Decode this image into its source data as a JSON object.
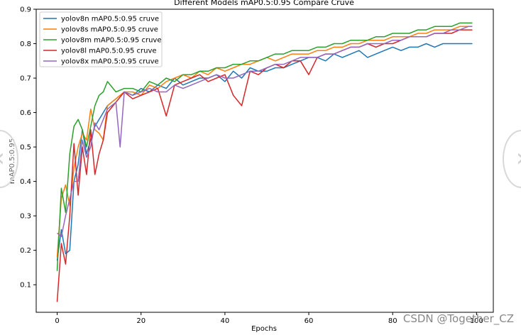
{
  "chart_data": {
    "type": "line",
    "title": "Different Models mAP0.5:0.95 Compare Cruve",
    "xlabel": "Epochs",
    "ylabel": "mAP0.5:0.95",
    "xlim": [
      -5,
      104
    ],
    "ylim": [
      0.02,
      0.9
    ],
    "xticks": [
      0,
      20,
      40,
      60,
      80,
      100
    ],
    "yticks": [
      0.1,
      0.2,
      0.3,
      0.4,
      0.5,
      0.6,
      0.7,
      0.8,
      0.9
    ],
    "legend_position": "top-left",
    "grid": false,
    "series": [
      {
        "name": "yolov8n mAP0.5:0.95 cruve",
        "color": "#1f77b4",
        "x": [
          0,
          1,
          2,
          3,
          4,
          5,
          6,
          7,
          8,
          9,
          10,
          11,
          12,
          14,
          16,
          18,
          20,
          22,
          24,
          26,
          28,
          30,
          32,
          34,
          36,
          38,
          40,
          42,
          44,
          46,
          48,
          50,
          52,
          54,
          56,
          58,
          60,
          62,
          64,
          66,
          68,
          70,
          72,
          74,
          76,
          78,
          80,
          82,
          84,
          86,
          88,
          90,
          92,
          94,
          96,
          98,
          99
        ],
        "y": [
          0.17,
          0.26,
          0.19,
          0.2,
          0.4,
          0.45,
          0.55,
          0.48,
          0.52,
          0.56,
          0.58,
          0.6,
          0.62,
          0.64,
          0.66,
          0.65,
          0.67,
          0.66,
          0.68,
          0.67,
          0.7,
          0.68,
          0.69,
          0.7,
          0.7,
          0.71,
          0.69,
          0.72,
          0.7,
          0.73,
          0.72,
          0.72,
          0.73,
          0.73,
          0.74,
          0.75,
          0.76,
          0.76,
          0.75,
          0.77,
          0.76,
          0.77,
          0.78,
          0.76,
          0.77,
          0.78,
          0.79,
          0.78,
          0.79,
          0.79,
          0.8,
          0.79,
          0.8,
          0.8,
          0.8,
          0.8,
          0.8
        ]
      },
      {
        "name": "yolov8s mAP0.5:0.95 cruve",
        "color": "#ff7f0e",
        "x": [
          0,
          1,
          2,
          3,
          4,
          5,
          6,
          7,
          8,
          9,
          10,
          11,
          12,
          14,
          16,
          18,
          20,
          22,
          24,
          26,
          28,
          30,
          32,
          34,
          36,
          38,
          40,
          42,
          44,
          46,
          48,
          50,
          52,
          54,
          56,
          58,
          60,
          62,
          64,
          66,
          68,
          70,
          72,
          74,
          76,
          78,
          80,
          82,
          84,
          86,
          88,
          90,
          92,
          94,
          96,
          98,
          99
        ],
        "y": [
          0.18,
          0.35,
          0.39,
          0.33,
          0.44,
          0.5,
          0.54,
          0.52,
          0.61,
          0.55,
          0.54,
          0.52,
          0.62,
          0.64,
          0.66,
          0.66,
          0.65,
          0.68,
          0.67,
          0.69,
          0.7,
          0.71,
          0.7,
          0.72,
          0.71,
          0.73,
          0.72,
          0.73,
          0.74,
          0.74,
          0.75,
          0.76,
          0.75,
          0.76,
          0.77,
          0.77,
          0.77,
          0.78,
          0.78,
          0.79,
          0.79,
          0.8,
          0.8,
          0.81,
          0.81,
          0.81,
          0.82,
          0.82,
          0.82,
          0.83,
          0.83,
          0.84,
          0.84,
          0.84,
          0.85,
          0.85,
          0.85
        ]
      },
      {
        "name": "yolov8m mAP0.5:0.95 cruve",
        "color": "#2ca02c",
        "x": [
          0,
          1,
          2,
          3,
          4,
          5,
          6,
          7,
          8,
          9,
          10,
          11,
          12,
          14,
          16,
          18,
          20,
          22,
          24,
          26,
          28,
          30,
          32,
          34,
          36,
          38,
          40,
          42,
          44,
          46,
          48,
          50,
          52,
          54,
          56,
          58,
          60,
          62,
          64,
          66,
          68,
          70,
          72,
          74,
          76,
          78,
          80,
          82,
          84,
          86,
          88,
          90,
          92,
          94,
          96,
          98,
          99
        ],
        "y": [
          0.14,
          0.38,
          0.31,
          0.48,
          0.56,
          0.58,
          0.55,
          0.5,
          0.56,
          0.62,
          0.65,
          0.66,
          0.69,
          0.66,
          0.67,
          0.67,
          0.66,
          0.69,
          0.68,
          0.7,
          0.69,
          0.71,
          0.71,
          0.72,
          0.72,
          0.73,
          0.73,
          0.74,
          0.74,
          0.75,
          0.75,
          0.76,
          0.77,
          0.77,
          0.78,
          0.78,
          0.78,
          0.79,
          0.79,
          0.8,
          0.8,
          0.81,
          0.81,
          0.81,
          0.82,
          0.82,
          0.83,
          0.83,
          0.83,
          0.84,
          0.84,
          0.85,
          0.85,
          0.85,
          0.86,
          0.86,
          0.86
        ]
      },
      {
        "name": "yolov8l mAP0.5:0.95 cruve",
        "color": "#d62728",
        "x": [
          0,
          1,
          2,
          3,
          4,
          5,
          6,
          7,
          8,
          9,
          10,
          11,
          12,
          14,
          16,
          18,
          20,
          22,
          24,
          26,
          28,
          30,
          32,
          34,
          36,
          38,
          40,
          42,
          44,
          46,
          48,
          50,
          52,
          54,
          56,
          58,
          60,
          62,
          64,
          66,
          68,
          70,
          72,
          74,
          76,
          78,
          80,
          82,
          84,
          86,
          88,
          90,
          92,
          94,
          96,
          98,
          99
        ],
        "y": [
          0.05,
          0.22,
          0.16,
          0.3,
          0.51,
          0.36,
          0.5,
          0.42,
          0.55,
          0.42,
          0.48,
          0.52,
          0.6,
          0.63,
          0.66,
          0.64,
          0.65,
          0.66,
          0.67,
          0.59,
          0.68,
          0.69,
          0.7,
          0.71,
          0.69,
          0.7,
          0.71,
          0.65,
          0.62,
          0.72,
          0.71,
          0.73,
          0.74,
          0.73,
          0.75,
          0.75,
          0.71,
          0.76,
          0.77,
          0.77,
          0.78,
          0.79,
          0.79,
          0.8,
          0.79,
          0.8,
          0.8,
          0.81,
          0.82,
          0.82,
          0.82,
          0.83,
          0.83,
          0.83,
          0.84,
          0.84,
          0.84
        ]
      },
      {
        "name": "yolov8x mAP0.5:0.95 cruve",
        "color": "#9467bd",
        "x": [
          0,
          1,
          2,
          3,
          4,
          5,
          6,
          7,
          8,
          9,
          10,
          11,
          12,
          14,
          15,
          16,
          18,
          20,
          22,
          24,
          26,
          28,
          30,
          32,
          34,
          36,
          38,
          40,
          42,
          44,
          46,
          48,
          50,
          52,
          54,
          56,
          58,
          60,
          62,
          64,
          66,
          68,
          70,
          72,
          74,
          76,
          78,
          80,
          82,
          84,
          86,
          88,
          90,
          92,
          94,
          96,
          98,
          99
        ],
        "y": [
          0.25,
          0.24,
          0.3,
          0.35,
          0.4,
          0.4,
          0.52,
          0.47,
          0.5,
          0.57,
          0.55,
          0.58,
          0.61,
          0.63,
          0.5,
          0.66,
          0.65,
          0.66,
          0.67,
          0.66,
          0.66,
          0.68,
          0.67,
          0.68,
          0.69,
          0.7,
          0.71,
          0.7,
          0.7,
          0.71,
          0.72,
          0.72,
          0.73,
          0.74,
          0.74,
          0.75,
          0.76,
          0.76,
          0.76,
          0.77,
          0.77,
          0.78,
          0.79,
          0.79,
          0.8,
          0.8,
          0.8,
          0.81,
          0.81,
          0.82,
          0.82,
          0.82,
          0.83,
          0.83,
          0.84,
          0.84,
          0.85,
          0.85
        ]
      }
    ]
  },
  "watermark": "CSDN @Together_CZ",
  "nav": {
    "prev_icon": "‹",
    "next_icon": "›"
  }
}
